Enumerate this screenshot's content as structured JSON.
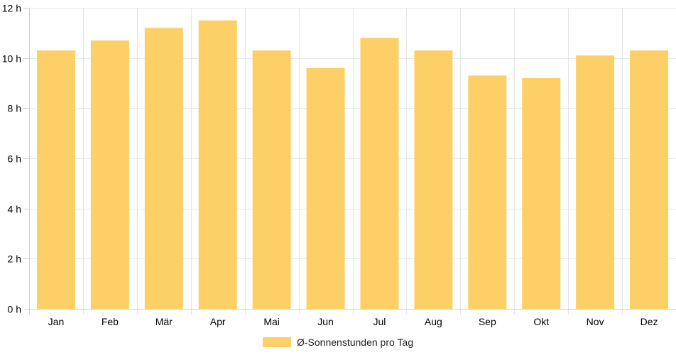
{
  "chart_data": {
    "type": "bar",
    "categories": [
      "Jan",
      "Feb",
      "Mär",
      "Apr",
      "Mai",
      "Jun",
      "Jul",
      "Aug",
      "Sep",
      "Okt",
      "Nov",
      "Dez"
    ],
    "series": [
      {
        "name": "Ø-Sonnenstunden pro Tag",
        "values": [
          10.3,
          10.7,
          11.2,
          11.5,
          10.3,
          9.6,
          10.8,
          10.3,
          9.3,
          9.2,
          10.1,
          10.3
        ],
        "color": "#fdd067"
      }
    ],
    "y_ticks": [
      0,
      2,
      4,
      6,
      8,
      10,
      12
    ],
    "y_unit": "h",
    "ylim": [
      0,
      12
    ],
    "grid": true,
    "legend_position": "bottom-center",
    "grid_color": "#e6e6e6",
    "axis_color": "#d0d0d0"
  }
}
